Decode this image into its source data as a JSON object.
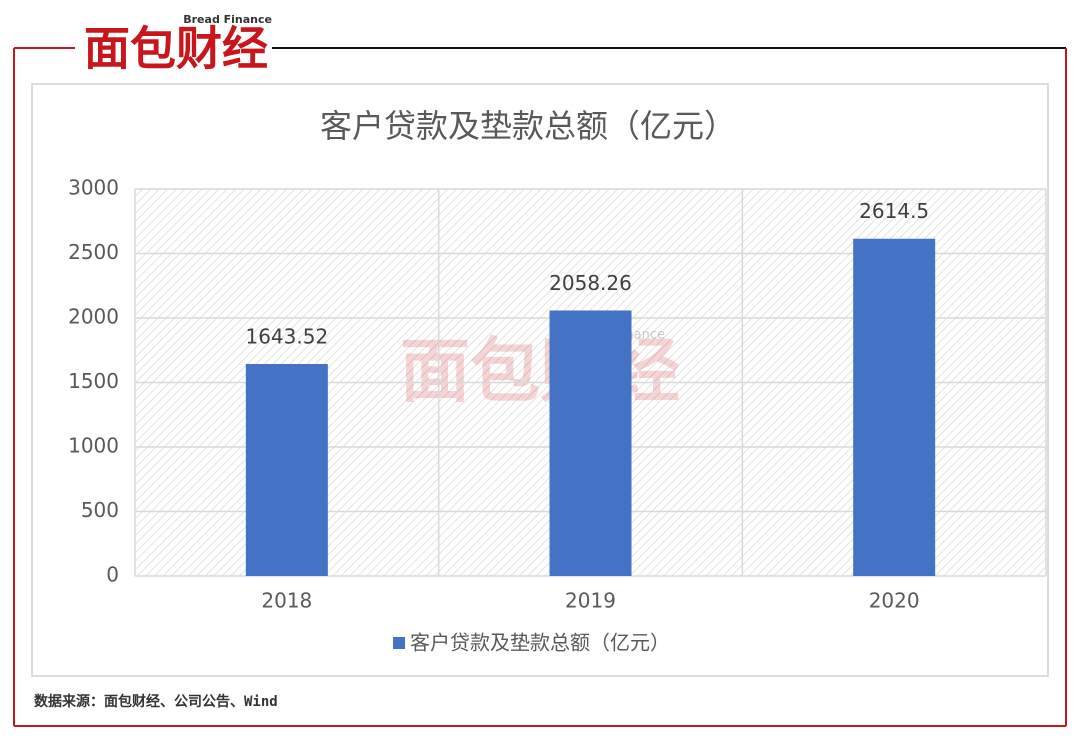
{
  "logo": {
    "text": "面包财经",
    "subtitle": "Bread Finance"
  },
  "source": "数据来源：面包财经、公司公告、Wind",
  "chart_data": {
    "type": "bar",
    "title": "客户贷款及垫款总额（亿元）",
    "categories": [
      "2018",
      "2019",
      "2020"
    ],
    "series": [
      {
        "name": "客户贷款及垫款总额（亿元）",
        "color": "#4472c4",
        "values": [
          1643.52,
          2058.26,
          2614.5
        ]
      }
    ],
    "ylim": [
      0,
      3000
    ],
    "yticks": [
      0,
      500,
      1000,
      1500,
      2000,
      2500,
      3000
    ],
    "grid": true,
    "legend": "bottom"
  }
}
